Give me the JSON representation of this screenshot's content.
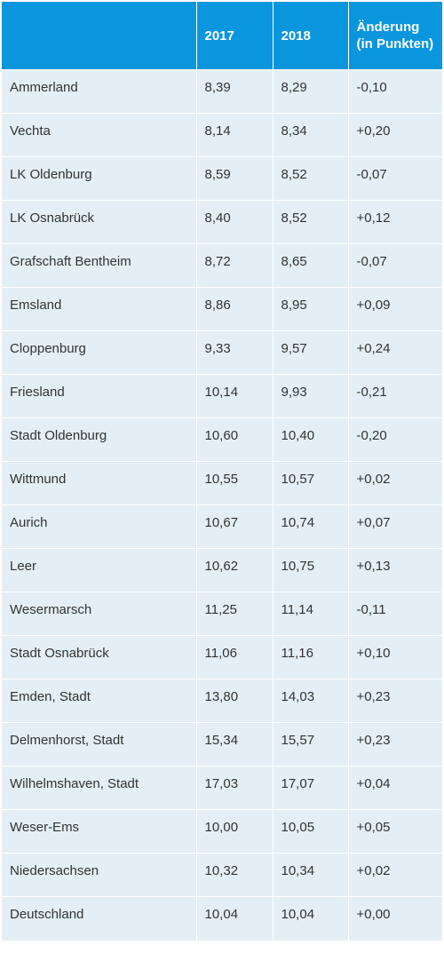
{
  "table": {
    "headers": [
      "",
      "2017",
      "2018",
      "Änderung (in Punkten)"
    ],
    "rows": [
      [
        "Ammerland",
        "8,39",
        "8,29",
        "-0,10"
      ],
      [
        "Vechta",
        "8,14",
        "8,34",
        "+0,20"
      ],
      [
        "LK Oldenburg",
        "8,59",
        "8,52",
        "-0,07"
      ],
      [
        "LK Osnabrück",
        "8,40",
        "8,52",
        "+0,12"
      ],
      [
        "Grafschaft Bentheim",
        "8,72",
        "8,65",
        "-0,07"
      ],
      [
        "Emsland",
        "8,86",
        "8,95",
        "+0,09"
      ],
      [
        "Cloppenburg",
        "9,33",
        "9,57",
        "+0,24"
      ],
      [
        "Friesland",
        "10,14",
        "9,93",
        "-0,21"
      ],
      [
        "Stadt Oldenburg",
        "10,60",
        "10,40",
        "-0,20"
      ],
      [
        "Wittmund",
        "10,55",
        "10,57",
        "+0,02"
      ],
      [
        "Aurich",
        "10,67",
        "10,74",
        "+0,07"
      ],
      [
        "Leer",
        "10,62",
        "10,75",
        "+0,13"
      ],
      [
        "Wesermarsch",
        "11,25",
        "11,14",
        "-0,11"
      ],
      [
        "Stadt Osnabrück",
        "11,06",
        "11,16",
        "+0,10"
      ],
      [
        "Emden, Stadt",
        "13,80",
        "14,03",
        "+0,23"
      ],
      [
        "Delmenhorst, Stadt",
        "15,34",
        "15,57",
        "+0,23"
      ],
      [
        "Wilhelmshaven, Stadt",
        "17,03",
        "17,07",
        "+0,04"
      ],
      [
        "Weser-Ems",
        "10,00",
        "10,05",
        "+0,05"
      ],
      [
        "Niedersachsen",
        "10,32",
        "10,34",
        "+0,02"
      ],
      [
        "Deutschland",
        "10,04",
        "10,04",
        "+0,00"
      ]
    ]
  },
  "colors": {
    "header_bg": "#0a96dd",
    "header_text": "#ffffff",
    "row_bg": "#e3eff4",
    "row_text": "#333333"
  }
}
